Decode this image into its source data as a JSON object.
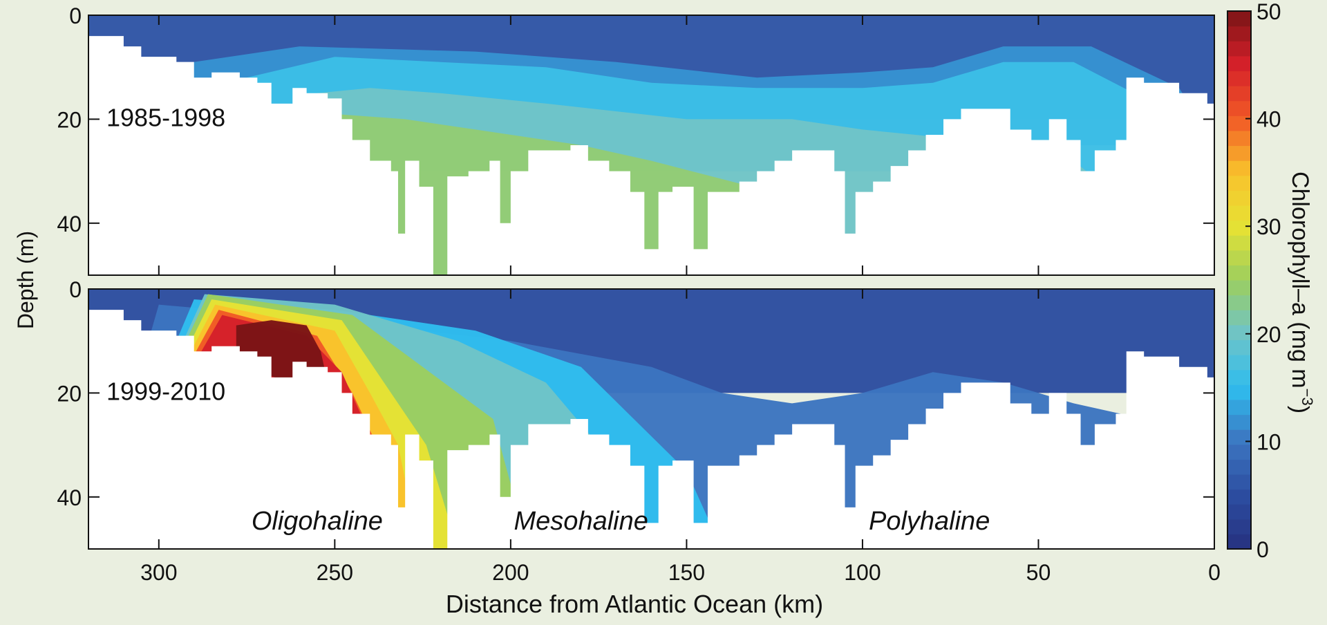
{
  "chart_data": {
    "type": "heatmap",
    "xlabel": "Distance from Atlantic Ocean (km)",
    "ylabel": "Depth (m)",
    "colorbar_label": "Chlorophyll–a (mg m",
    "colorbar_exponent": "−3",
    "colorbar_close": ")",
    "xlim": [
      320,
      0
    ],
    "ylim": [
      50,
      0
    ],
    "x_ticks": [
      300,
      250,
      200,
      150,
      100,
      50,
      0
    ],
    "y_ticks": [
      0,
      20,
      40
    ],
    "colorbar_ticks": [
      0,
      10,
      20,
      30,
      40,
      50
    ],
    "colorbar_range": [
      0,
      50
    ],
    "zones": [
      {
        "label": "Oligohaline",
        "x": 255
      },
      {
        "label": "Mesohaline",
        "x": 180
      },
      {
        "label": "Polyhaline",
        "x": 81
      }
    ],
    "bottom_profile": [
      [
        320,
        4
      ],
      [
        310,
        6
      ],
      [
        305,
        8
      ],
      [
        295,
        9
      ],
      [
        290,
        12
      ],
      [
        285,
        11
      ],
      [
        277,
        12
      ],
      [
        272,
        13
      ],
      [
        268,
        17
      ],
      [
        262,
        14
      ],
      [
        258,
        15
      ],
      [
        252,
        16
      ],
      [
        248,
        20
      ],
      [
        245,
        24
      ],
      [
        240,
        28
      ],
      [
        234,
        30
      ],
      [
        232,
        42
      ],
      [
        230,
        28
      ],
      [
        226,
        33
      ],
      [
        222,
        50
      ],
      [
        218,
        31
      ],
      [
        212,
        30
      ],
      [
        206,
        28
      ],
      [
        203,
        40
      ],
      [
        200,
        30
      ],
      [
        195,
        26
      ],
      [
        188,
        26
      ],
      [
        183,
        25
      ],
      [
        178,
        28
      ],
      [
        172,
        30
      ],
      [
        166,
        34
      ],
      [
        162,
        45
      ],
      [
        158,
        34
      ],
      [
        154,
        33
      ],
      [
        148,
        45
      ],
      [
        144,
        34
      ],
      [
        140,
        34
      ],
      [
        135,
        32
      ],
      [
        130,
        30
      ],
      [
        125,
        28
      ],
      [
        120,
        26
      ],
      [
        115,
        26
      ],
      [
        108,
        30
      ],
      [
        105,
        42
      ],
      [
        102,
        34
      ],
      [
        97,
        32
      ],
      [
        92,
        29
      ],
      [
        87,
        26
      ],
      [
        82,
        23
      ],
      [
        77,
        20
      ],
      [
        72,
        18
      ],
      [
        65,
        18
      ],
      [
        58,
        22
      ],
      [
        52,
        24
      ],
      [
        47,
        20
      ],
      [
        42,
        24
      ],
      [
        38,
        30
      ],
      [
        34,
        26
      ],
      [
        28,
        24
      ],
      [
        25,
        12
      ],
      [
        20,
        13
      ],
      [
        10,
        15
      ],
      [
        2,
        17
      ],
      [
        0,
        20
      ]
    ],
    "panels": [
      {
        "label": "1985-1998",
        "contours": [
          {
            "value": 6,
            "points": [
              [
                320,
                0
              ],
              [
                0,
                0
              ],
              [
                0,
                20
              ],
              [
                320,
                20
              ]
            ]
          },
          {
            "value": 12,
            "points": [
              [
                300,
                10
              ],
              [
                260,
                6
              ],
              [
                210,
                7
              ],
              [
                170,
                9
              ],
              [
                130,
                12
              ],
              [
                100,
                11
              ],
              [
                80,
                10
              ],
              [
                60,
                6
              ],
              [
                35,
                6
              ],
              [
                10,
                14
              ],
              [
                0,
                25
              ],
              [
                320,
                25
              ]
            ]
          },
          {
            "value": 16,
            "points": [
              [
                275,
                12
              ],
              [
                250,
                8
              ],
              [
                220,
                9
              ],
              [
                190,
                10
              ],
              [
                160,
                13
              ],
              [
                130,
                14
              ],
              [
                100,
                14
              ],
              [
                80,
                13
              ],
              [
                60,
                9
              ],
              [
                40,
                9
              ],
              [
                20,
                16
              ],
              [
                0,
                30
              ],
              [
                320,
                30
              ]
            ]
          },
          {
            "value": 20,
            "points": [
              [
                255,
                15
              ],
              [
                240,
                14
              ],
              [
                220,
                15
              ],
              [
                190,
                17
              ],
              [
                150,
                20
              ],
              [
                120,
                20
              ],
              [
                100,
                22
              ],
              [
                70,
                24
              ],
              [
                40,
                28
              ],
              [
                0,
                50
              ],
              [
                320,
                50
              ]
            ]
          },
          {
            "value": 24,
            "points": [
              [
                250,
                19
              ],
              [
                230,
                20
              ],
              [
                210,
                22
              ],
              [
                180,
                25
              ],
              [
                160,
                28
              ],
              [
                120,
                35
              ],
              [
                100,
                50
              ],
              [
                320,
                50
              ]
            ]
          }
        ]
      },
      {
        "label": "1999-2010",
        "contours": [
          {
            "value": 5,
            "points": [
              [
                320,
                0
              ],
              [
                0,
                0
              ],
              [
                0,
                20
              ],
              [
                320,
                20
              ]
            ]
          },
          {
            "value": 10,
            "points": [
              [
                300,
                3
              ],
              [
                250,
                6
              ],
              [
                200,
                10
              ],
              [
                160,
                15
              ],
              [
                140,
                20
              ],
              [
                120,
                22
              ],
              [
                100,
                20
              ],
              [
                80,
                16
              ],
              [
                60,
                18
              ],
              [
                40,
                22
              ],
              [
                20,
                25
              ],
              [
                0,
                50
              ],
              [
                320,
                50
              ]
            ]
          },
          {
            "value": 15,
            "points": [
              [
                290,
                2
              ],
              [
                250,
                4
              ],
              [
                210,
                8
              ],
              [
                180,
                15
              ],
              [
                165,
                25
              ],
              [
                150,
                35
              ],
              [
                140,
                50
              ],
              [
                320,
                50
              ]
            ]
          },
          {
            "value": 20,
            "points": [
              [
                287,
                1
              ],
              [
                250,
                3
              ],
              [
                215,
                10
              ],
              [
                190,
                18
              ],
              [
                175,
                30
              ],
              [
                168,
                50
              ],
              [
                320,
                50
              ]
            ]
          },
          {
            "value": 25,
            "points": [
              [
                286,
                1
              ],
              [
                245,
                5
              ],
              [
                225,
                15
              ],
              [
                205,
                25
              ],
              [
                195,
                50
              ],
              [
                320,
                50
              ]
            ]
          },
          {
            "value": 30,
            "points": [
              [
                285,
                2
              ],
              [
                248,
                6
              ],
              [
                236,
                18
              ],
              [
                224,
                30
              ],
              [
                215,
                50
              ],
              [
                320,
                50
              ]
            ]
          },
          {
            "value": 35,
            "points": [
              [
                284,
                3
              ],
              [
                250,
                8
              ],
              [
                240,
                20
              ],
              [
                232,
                30
              ],
              [
                226,
                50
              ],
              [
                320,
                50
              ]
            ]
          },
          {
            "value": 40,
            "points": [
              [
                283,
                4
              ],
              [
                255,
                9
              ],
              [
                245,
                20
              ],
              [
                238,
                30
              ],
              [
                234,
                50
              ],
              [
                320,
                50
              ]
            ]
          },
          {
            "value": 45,
            "points": [
              [
                282,
                5
              ],
              [
                258,
                9
              ],
              [
                248,
                16
              ],
              [
                242,
                25
              ],
              [
                240,
                50
              ],
              [
                320,
                50
              ]
            ]
          },
          {
            "value": 50,
            "points": [
              [
                278,
                7
              ],
              [
                268,
                6
              ],
              [
                258,
                7
              ],
              [
                254,
                12
              ],
              [
                252,
                18
              ],
              [
                262,
                18
              ],
              [
                272,
                16
              ],
              [
                278,
                12
              ]
            ]
          }
        ]
      }
    ]
  }
}
